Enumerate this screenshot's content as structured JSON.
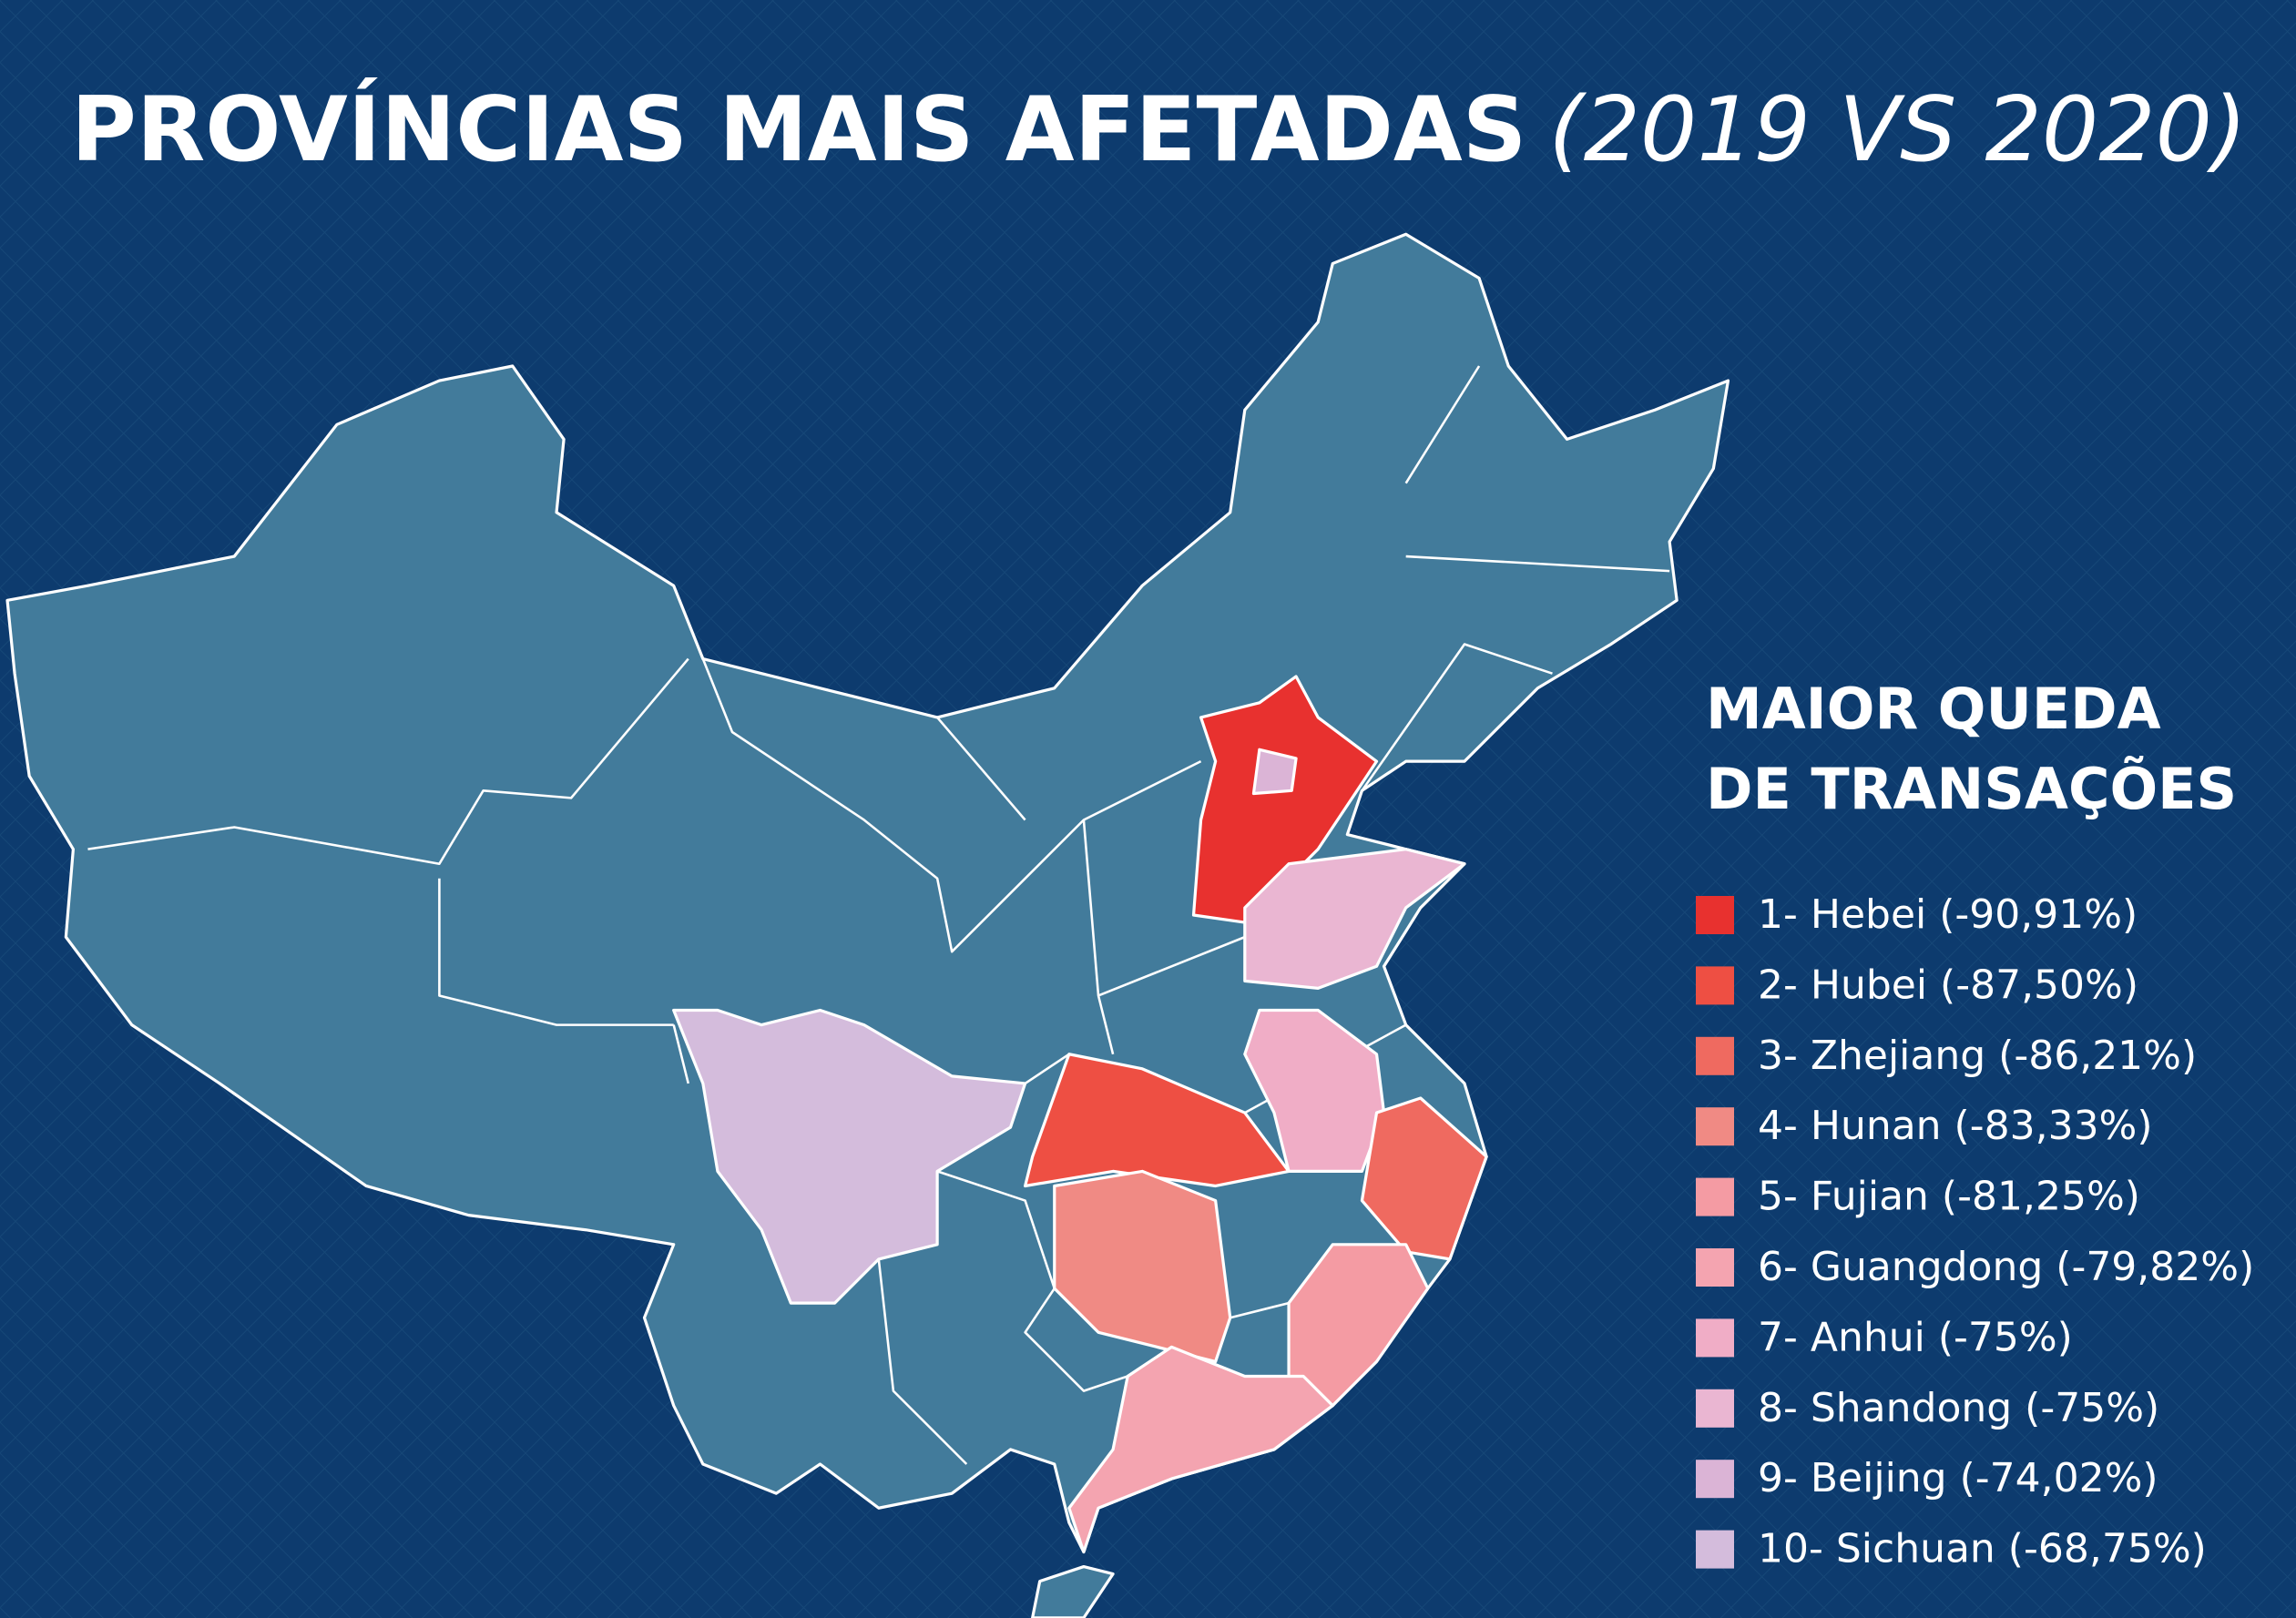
{
  "title": "PROVÍNCIAS MAIS AFETADAS",
  "subtitle": "(2019 VS 2020)",
  "legend": {
    "title": [
      "MAIOR QUEDA",
      "DE TRANSAÇÕES"
    ],
    "items": [
      {
        "label": "1- Hebei (-90,91%)",
        "color": "#e8312f"
      },
      {
        "label": "2- Hubei (-87,50%)",
        "color": "#ee4f43"
      },
      {
        "label": "3- Zhejiang (-86,21%)",
        "color": "#ef6a60"
      },
      {
        "label": "4- Hunan (-83,33%)",
        "color": "#f08a84"
      },
      {
        "label": "5- Fujian (-81,25%)",
        "color": "#f49ba3"
      },
      {
        "label": "6- Guangdong (-79,82%)",
        "color": "#f4a4b0"
      },
      {
        "label": "7- Anhui (-75%)",
        "color": "#f0adc6"
      },
      {
        "label": "8- Shandong (-75%)",
        "color": "#eab6d2"
      },
      {
        "label": "9- Beijing (-74,02%)",
        "color": "#dbb4d6"
      },
      {
        "label": "10- Sichuan (-68,75%)",
        "color": "#d4bcdc"
      }
    ]
  }
}
